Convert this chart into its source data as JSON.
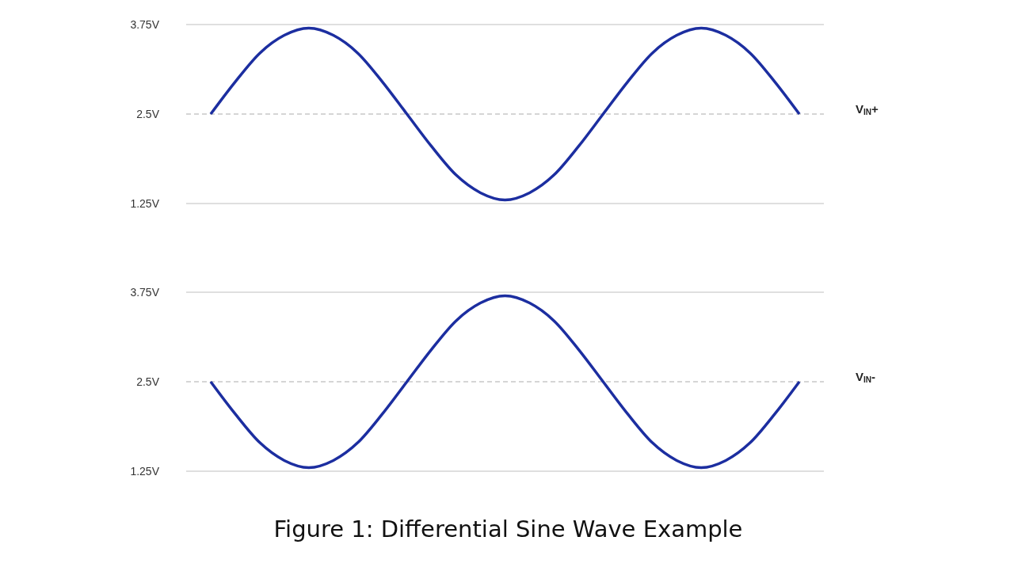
{
  "chart_data": [
    {
      "type": "line",
      "categories": [
        null,
        null,
        null,
        null,
        null,
        null,
        null,
        null,
        null,
        null,
        null,
        null,
        null,
        null,
        null,
        null,
        null,
        null,
        null,
        null,
        null,
        null,
        null,
        null,
        null,
        null,
        null
      ],
      "series": [
        {
          "color": "#1c2ea0",
          "values": [
            null,
            2.5,
            2.95,
            3.35,
            3.6,
            3.7,
            3.6,
            3.35,
            2.95,
            2.5,
            2.05,
            1.65,
            1.4,
            1.3,
            1.4,
            1.65,
            2.05,
            2.5,
            2.95,
            3.35,
            3.6,
            3.7,
            3.6,
            3.35,
            2.95,
            2.5,
            null
          ]
        }
      ],
      "ylim": [
        1.25,
        3.75
      ],
      "yticks": [
        {
          "value": 1.25,
          "label": "1.25V"
        },
        {
          "value": 2.5,
          "label": "2.5V"
        },
        {
          "value": 3.75,
          "label": "3.75V"
        }
      ],
      "tick_labels": "y",
      "marker": "none",
      "line_style": "solid",
      "ref_lines": [
        {
          "axis": "y",
          "value": 3.75,
          "color": "#d4d4d4",
          "line_style": "solid"
        },
        {
          "axis": "y",
          "value": 2.5,
          "label": "V$_{IN}$+",
          "color": "#c8c8c8",
          "line_style": "dashed"
        },
        {
          "axis": "y",
          "value": 1.25,
          "color": "#d4d4d4",
          "line_style": "solid"
        }
      ]
    },
    {
      "type": "line",
      "categories": [
        null,
        null,
        null,
        null,
        null,
        null,
        null,
        null,
        null,
        null,
        null,
        null,
        null,
        null,
        null,
        null,
        null,
        null,
        null,
        null,
        null,
        null,
        null,
        null,
        null,
        null,
        null
      ],
      "series": [
        {
          "color": "#1c2ea0",
          "values": [
            null,
            2.5,
            2.05,
            1.65,
            1.4,
            1.3,
            1.4,
            1.65,
            2.05,
            2.5,
            2.95,
            3.35,
            3.6,
            3.7,
            3.6,
            3.35,
            2.95,
            2.5,
            2.05,
            1.65,
            1.4,
            1.3,
            1.4,
            1.65,
            2.05,
            2.5,
            null
          ]
        }
      ],
      "ylim": [
        1.25,
        3.75
      ],
      "yticks": [
        {
          "value": 1.25,
          "label": "1.25V"
        },
        {
          "value": 2.5,
          "label": "2.5V"
        },
        {
          "value": 3.75,
          "label": "3.75V"
        }
      ],
      "tick_labels": "y",
      "marker": "none",
      "line_style": "solid",
      "ref_lines": [
        {
          "axis": "y",
          "value": 3.75,
          "color": "#d4d4d4",
          "line_style": "solid"
        },
        {
          "axis": "y",
          "value": 2.5,
          "label": "V$_{IN}$-",
          "color": "#c8c8c8",
          "line_style": "dashed"
        },
        {
          "axis": "y",
          "value": 1.25,
          "color": "#d4d4d4",
          "line_style": "solid"
        }
      ],
      "annotations": [
        "Figure 1: Differential Sine Wave Example"
      ]
    }
  ]
}
